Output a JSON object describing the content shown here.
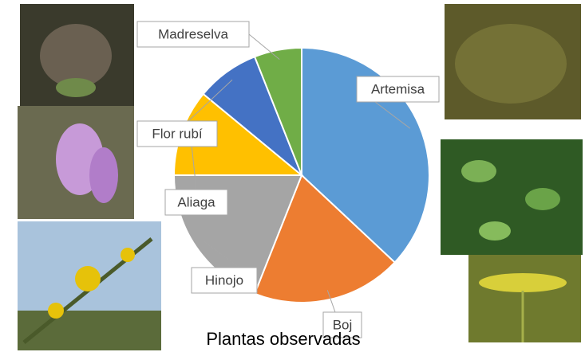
{
  "chart_data": {
    "type": "pie",
    "title": "Plantas observadas",
    "categories": [
      "Artemisa",
      "Boj",
      "Hinojo",
      "Aliaga",
      "Flor rubí",
      "Madreselva"
    ],
    "values": [
      37,
      19,
      19,
      11,
      8,
      6
    ],
    "colors": [
      "#5b9bd5",
      "#ed7d31",
      "#a5a5a5",
      "#ffc000",
      "#4472c4",
      "#70ad47"
    ]
  }
}
